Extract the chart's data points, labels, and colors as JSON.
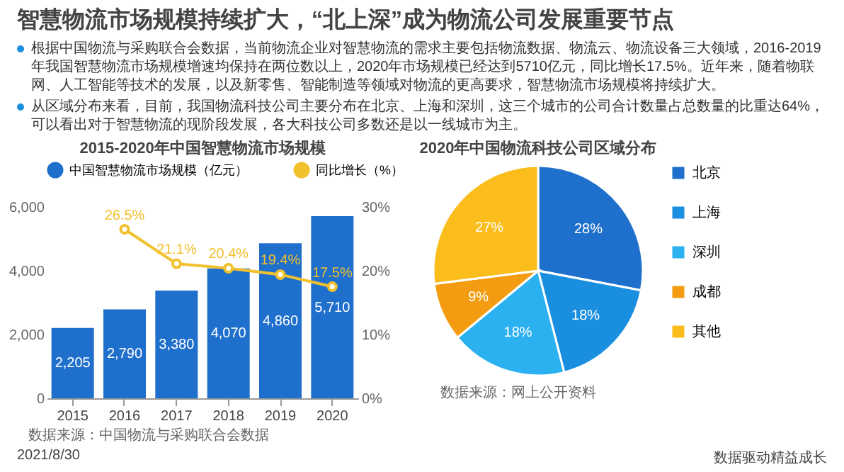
{
  "chart_data": [
    {
      "type": "other",
      "title": "智慧物流市场规模持续扩大，“北上深”成为物流公司发展重要节点",
      "annotations": [
        "根据中国物流与采购联合会数据，当前物流企业对智慧物流的需求主要包括物流数据、物流云、物流设备三大领域，2016-2019年我国智慧物流市场规模增速均保持在两位数以上，2020年市场规模已经达到5710亿元，同比增长17.5%。近年来，随着物联网、人工智能等技术的发展，以及新零售、智能制造等领域对物流的更高要求，智慧物流市场规模将持续扩大。",
        "从区域分布来看，目前，我国物流科技公司主要分布在北京、上海和深圳，这三个城市的公司合计数量占总数量的比重达64%，可以看出对于智慧物流的现阶段发展，各大科技公司多数还是以一线城市为主。",
        "2021/8/30",
        "数据驱动精益成长"
      ]
    },
    {
      "type": "bar",
      "title": "2015-2020年中国智慧物流市场规模",
      "categories": [
        "2015",
        "2016",
        "2017",
        "2018",
        "2019",
        "2020"
      ],
      "series": [
        {
          "name": "中国智慧物流市场规模（亿元）",
          "color": "#1f6fcc",
          "values": [
            2205,
            2790,
            3380,
            4070,
            4860,
            5710
          ]
        },
        {
          "name": "同比增长（%）",
          "type": "line",
          "axis": "y2",
          "color": "#f2c12e",
          "values": [
            null,
            26.5,
            21.1,
            20.4,
            19.4,
            17.5
          ],
          "value_labels": [
            null,
            "26.5%",
            "21.1%",
            "20.4%",
            "19.4%",
            "17.5%"
          ]
        }
      ],
      "ylim": [
        0,
        6000
      ],
      "yticks": [
        {
          "value": 0,
          "label": "0"
        },
        {
          "value": 2000,
          "label": "2,000"
        },
        {
          "value": 4000,
          "label": "4,000"
        },
        {
          "value": 6000,
          "label": "6,000"
        }
      ],
      "y2lim": [
        0,
        30
      ],
      "y2ticks": [
        {
          "value": 0,
          "label": "0%"
        },
        {
          "value": 10,
          "label": "10%"
        },
        {
          "value": 20,
          "label": "20%"
        },
        {
          "value": 30,
          "label": "30%"
        }
      ],
      "value_labels": [
        "2,205",
        "2,790",
        "3,380",
        "4,070",
        "4,860",
        "5,710"
      ],
      "legend": "top",
      "marker": "circle",
      "grid": false,
      "annotations": [
        "数据来源：中国物流与采购联合会数据"
      ]
    },
    {
      "type": "pie",
      "title": "2020年中国物流科技公司区域分布",
      "categories": [
        "北京",
        "上海",
        "深圳",
        "成都",
        "其他"
      ],
      "values": [
        28,
        18,
        18,
        9,
        27
      ],
      "colors": [
        "#1f6fcc",
        "#1a8fe0",
        "#2bb0f0",
        "#f39c12",
        "#fbbd1b"
      ],
      "value_labels": [
        "28%",
        "18%",
        "18%",
        "9%",
        "27%"
      ],
      "legend": "right",
      "annotations": [
        "数据来源：网上公开资料"
      ]
    }
  ]
}
